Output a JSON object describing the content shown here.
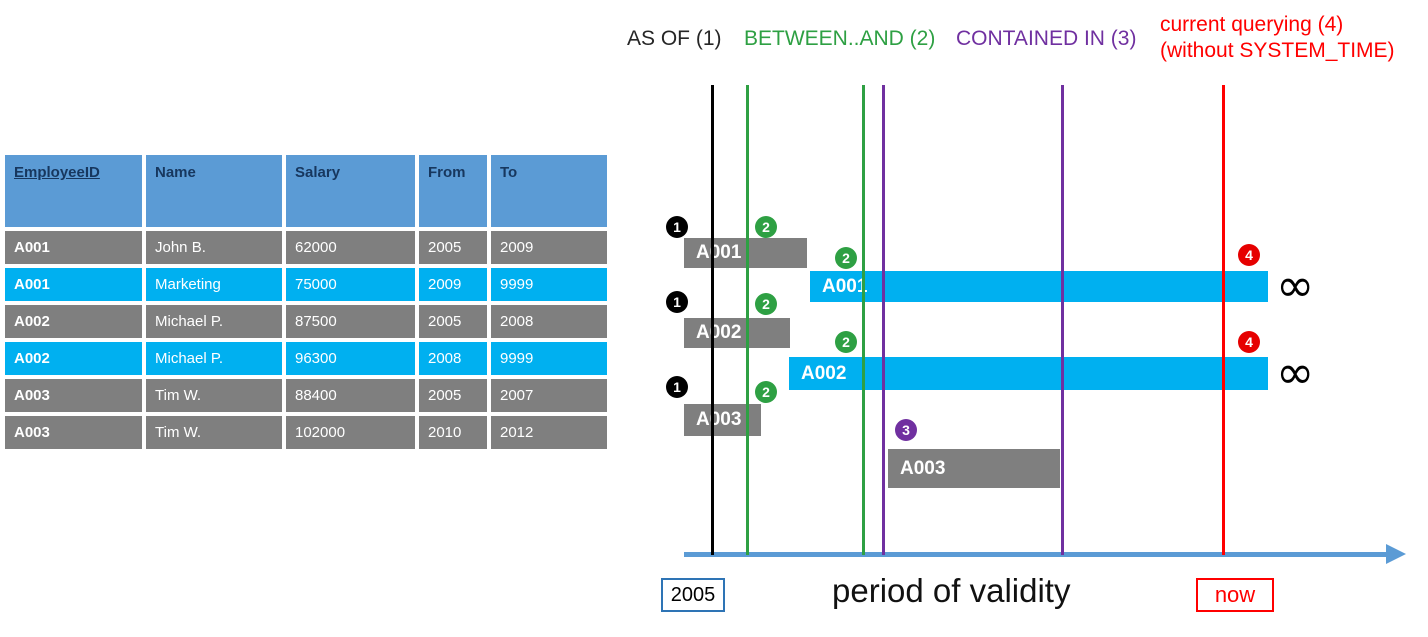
{
  "table": {
    "headers": [
      "EmployeeID",
      "Name",
      "Salary",
      "From",
      "To"
    ],
    "rows": [
      {
        "employee_id": "A001",
        "name": "John B.",
        "salary": "62000",
        "from": "2005",
        "to": "2009",
        "highlight": "gray"
      },
      {
        "employee_id": "A001",
        "name": "Marketing",
        "salary": "75000",
        "from": "2009",
        "to": "9999",
        "highlight": "cyan"
      },
      {
        "employee_id": "A002",
        "name": "Michael P.",
        "salary": "87500",
        "from": "2005",
        "to": "2008",
        "highlight": "gray"
      },
      {
        "employee_id": "A002",
        "name": "Michael P.",
        "salary": "96300",
        "from": "2008",
        "to": "9999",
        "highlight": "cyan"
      },
      {
        "employee_id": "A003",
        "name": "Tim W.",
        "salary": "88400",
        "from": "2005",
        "to": "2007",
        "highlight": "gray"
      },
      {
        "employee_id": "A003",
        "name": "Tim W.",
        "salary": "102000",
        "from": "2010",
        "to": "2012",
        "highlight": "gray"
      }
    ]
  },
  "legend": {
    "as_of": "AS OF (1)",
    "between_and": "BETWEEN..AND (2)",
    "contained_in": "CONTAINED IN (3)",
    "current_line1": "current querying (4)",
    "current_line2": "(without SYSTEM_TIME)"
  },
  "timeline": {
    "bars": [
      {
        "label": "A001",
        "period": "2005-2009",
        "style": "closed"
      },
      {
        "label": "A001",
        "period": "2009-9999",
        "style": "open-ended"
      },
      {
        "label": "A002",
        "period": "2005-2008",
        "style": "closed"
      },
      {
        "label": "A002",
        "period": "2008-9999",
        "style": "open-ended"
      },
      {
        "label": "A003",
        "period": "2005-2007",
        "style": "closed"
      },
      {
        "label": "A003",
        "period": "2010-2012",
        "style": "closed"
      }
    ],
    "badges": [
      "1",
      "2",
      "2",
      "4",
      "1",
      "2",
      "2",
      "4",
      "1",
      "2",
      "3"
    ],
    "infinity": "∞",
    "axis": {
      "start": "2005",
      "label": "period of validity",
      "end": "now"
    }
  },
  "colors": {
    "as_of_black": "#000000",
    "between_and_green": "#2EA043",
    "contained_in_purple": "#7030A0",
    "current_red": "#FF0000",
    "row_gray": "#7F7F7F",
    "row_cyan": "#00B0F0",
    "header_blue": "#5B9BD5",
    "axis_blue": "#5B9BD5"
  }
}
